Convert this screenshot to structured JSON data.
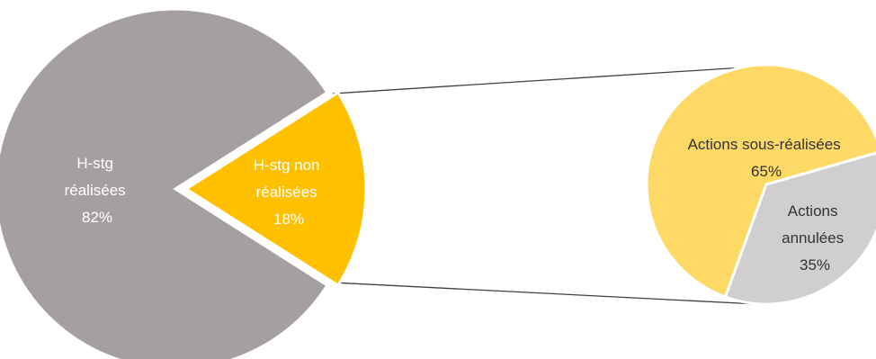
{
  "chart_data": {
    "type": "pie",
    "main_pie": {
      "slices": [
        {
          "label_lines": [
            "H-stg",
            "réalisées"
          ],
          "percent_label": "82%",
          "value": 82,
          "color": "#a5a09f"
        },
        {
          "label_lines": [
            "H-stg non",
            "réalisées"
          ],
          "percent_label": "18%",
          "value": 18,
          "color": "#ffc000"
        }
      ]
    },
    "sub_pie": {
      "slices": [
        {
          "label_lines": [
            "Actions sous-réalisées"
          ],
          "percent_label": "65%",
          "value": 65,
          "color": "#ffd966"
        },
        {
          "label_lines": [
            "Actions",
            "annulées"
          ],
          "percent_label": "35%",
          "value": 35,
          "color": "#d0cece"
        }
      ]
    },
    "connector_color": "#404040"
  }
}
